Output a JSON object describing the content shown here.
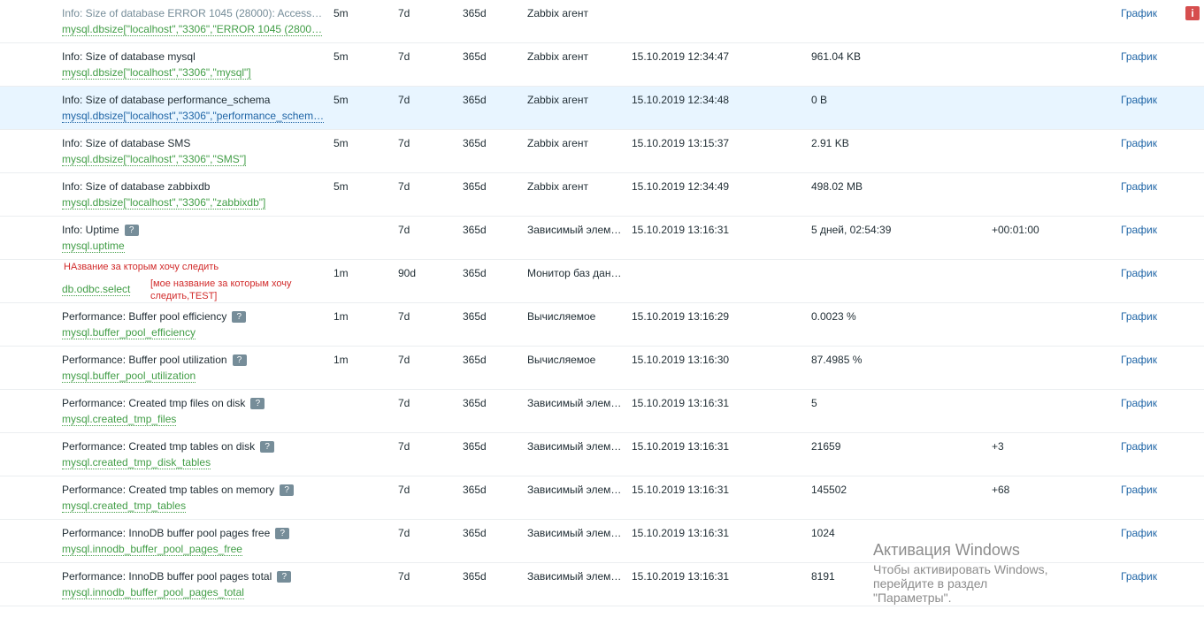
{
  "rows": [
    {
      "name": "Info: Size of database ERROR 1045 (28000): Access…",
      "key": "mysql.dbsize[\"localhost\",\"3306\",\"ERROR 1045 (2800…",
      "interval": "5m",
      "history": "7d",
      "trends": "365d",
      "type": "Zabbix агент",
      "last_check": "",
      "last_value": "",
      "change": "",
      "graph": "График",
      "help": false,
      "dim": true,
      "info": "i"
    },
    {
      "name": "Info: Size of database mysql",
      "key": "mysql.dbsize[\"localhost\",\"3306\",\"mysql\"]",
      "interval": "5m",
      "history": "7d",
      "trends": "365d",
      "type": "Zabbix агент",
      "last_check": "15.10.2019 12:34:47",
      "last_value": "961.04 KB",
      "change": "",
      "graph": "График"
    },
    {
      "name": "Info: Size of database performance_schema",
      "key": "mysql.dbsize[\"localhost\",\"3306\",\"performance_schem…",
      "interval": "5m",
      "history": "7d",
      "trends": "365d",
      "type": "Zabbix агент",
      "last_check": "15.10.2019 12:34:48",
      "last_value": "0 B",
      "change": "",
      "graph": "График",
      "highlight": true
    },
    {
      "name": "Info: Size of database SMS",
      "key": "mysql.dbsize[\"localhost\",\"3306\",\"SMS\"]",
      "interval": "5m",
      "history": "7d",
      "trends": "365d",
      "type": "Zabbix агент",
      "last_check": "15.10.2019 13:15:37",
      "last_value": "2.91 KB",
      "change": "",
      "graph": "График"
    },
    {
      "name": "Info: Size of database zabbixdb",
      "key": "mysql.dbsize[\"localhost\",\"3306\",\"zabbixdb\"]",
      "interval": "5m",
      "history": "7d",
      "trends": "365d",
      "type": "Zabbix агент",
      "last_check": "15.10.2019 12:34:49",
      "last_value": "498.02 MB",
      "change": "",
      "graph": "График"
    },
    {
      "name": "Info: Uptime",
      "key": "mysql.uptime",
      "interval": "",
      "history": "7d",
      "trends": "365d",
      "type": "Зависимый элем…",
      "last_check": "15.10.2019 13:16:31",
      "last_value": "5 дней, 02:54:39",
      "change": "+00:01:00",
      "graph": "График",
      "help": true
    },
    {
      "name": "",
      "key": "db.odbc.select",
      "interval": "1m",
      "history": "90d",
      "trends": "365d",
      "type": "Монитор баз дан…",
      "last_check": "",
      "last_value": "",
      "change": "",
      "graph": "График",
      "annot1": "НАзвание за кторым хочу следить",
      "annot2a": "[мое название за которым хочу",
      "annot2b": "следить,TEST]"
    },
    {
      "name": "Performance: Buffer pool efficiency",
      "key": "mysql.buffer_pool_efficiency",
      "interval": "1m",
      "history": "7d",
      "trends": "365d",
      "type": "Вычисляемое",
      "last_check": "15.10.2019 13:16:29",
      "last_value": "0.0023 %",
      "change": "",
      "graph": "График",
      "help": true
    },
    {
      "name": "Performance: Buffer pool utilization",
      "key": "mysql.buffer_pool_utilization",
      "interval": "1m",
      "history": "7d",
      "trends": "365d",
      "type": "Вычисляемое",
      "last_check": "15.10.2019 13:16:30",
      "last_value": "87.4985 %",
      "change": "",
      "graph": "График",
      "help": true
    },
    {
      "name": "Performance: Created tmp files on disk",
      "key": "mysql.created_tmp_files",
      "interval": "",
      "history": "7d",
      "trends": "365d",
      "type": "Зависимый элем…",
      "last_check": "15.10.2019 13:16:31",
      "last_value": "5",
      "change": "",
      "graph": "График",
      "help": true
    },
    {
      "name": "Performance: Created tmp tables on disk",
      "key": "mysql.created_tmp_disk_tables",
      "interval": "",
      "history": "7d",
      "trends": "365d",
      "type": "Зависимый элем…",
      "last_check": "15.10.2019 13:16:31",
      "last_value": "21659",
      "change": "+3",
      "graph": "График",
      "help": true
    },
    {
      "name": "Performance: Created tmp tables on memory",
      "key": "mysql.created_tmp_tables",
      "interval": "",
      "history": "7d",
      "trends": "365d",
      "type": "Зависимый элем…",
      "last_check": "15.10.2019 13:16:31",
      "last_value": "145502",
      "change": "+68",
      "graph": "График",
      "help": true
    },
    {
      "name": "Performance: InnoDB buffer pool pages free",
      "key": "mysql.innodb_buffer_pool_pages_free",
      "interval": "",
      "history": "7d",
      "trends": "365d",
      "type": "Зависимый элем…",
      "last_check": "15.10.2019 13:16:31",
      "last_value": "1024",
      "change": "",
      "graph": "График",
      "help": true
    },
    {
      "name": "Performance: InnoDB buffer pool pages total",
      "key": "mysql.innodb_buffer_pool_pages_total",
      "interval": "",
      "history": "7d",
      "trends": "365d",
      "type": "Зависимый элем…",
      "last_check": "15.10.2019 13:16:31",
      "last_value": "8191",
      "change": "",
      "graph": "График",
      "help": true
    }
  ],
  "help_glyph": "?",
  "watermark": {
    "title": "Активация Windows",
    "line1": "Чтобы активировать Windows, перейдите в раздел",
    "line2": "\"Параметры\"."
  }
}
